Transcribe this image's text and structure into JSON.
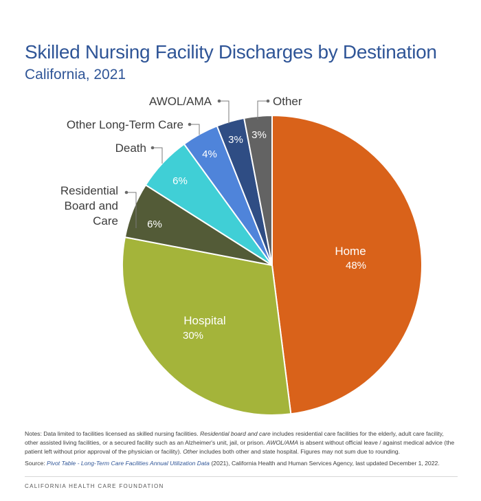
{
  "chart_data": {
    "type": "pie",
    "title": "Skilled Nursing Facility Discharges by Destination",
    "subtitle": "California, 2021",
    "slices": [
      {
        "label": "Home",
        "value": 48,
        "display": "48%",
        "color": "#d9621a",
        "label_position": "inside"
      },
      {
        "label": "Hospital",
        "value": 30,
        "display": "30%",
        "color": "#a4b43a",
        "label_position": "inside"
      },
      {
        "label": "Residential Board and Care",
        "label_lines": [
          "Residential",
          "Board and",
          "Care"
        ],
        "value": 6,
        "display": "6%",
        "color": "#535b37",
        "label_position": "outside"
      },
      {
        "label": "Death",
        "value": 6,
        "display": "6%",
        "color": "#40cfd6",
        "label_position": "outside"
      },
      {
        "label": "Other Long-Term Care",
        "value": 4,
        "display": "4%",
        "color": "#4f84da",
        "label_position": "outside"
      },
      {
        "label": "AWOL/AMA",
        "value": 3,
        "display": "3%",
        "color": "#2f4d84",
        "label_position": "outside"
      },
      {
        "label": "Other",
        "value": 3,
        "display": "3%",
        "color": "#636363",
        "label_position": "outside"
      }
    ]
  },
  "notes": {
    "lead": "Notes: Data limited to facilities licensed as skilled nursing facilities. ",
    "rbc_term": "Residential board and care",
    "rbc_text": " includes residential care facilities for the elderly, adult care facility, other assisted living facilities, or a secured facility such as an Alzheimer's unit, jail, or prison. ",
    "awol_term": "AWOL/AMA",
    "awol_text": " is absent without official leave / against medical advice (the patient left without prior approval of the physician or facility). ",
    "other_term": "Other",
    "other_text": " includes both other and state hospital. Figures may not sum due to rounding."
  },
  "source": {
    "prefix": "Source: ",
    "link_text": "Pivot Table - Long-Term Care Facilities Annual Utilization Data",
    "suffix": " (2021), California Health and Human Services Agency, last updated December 1, 2022."
  },
  "footer": "CALIFORNIA HEALTH CARE FOUNDATION"
}
